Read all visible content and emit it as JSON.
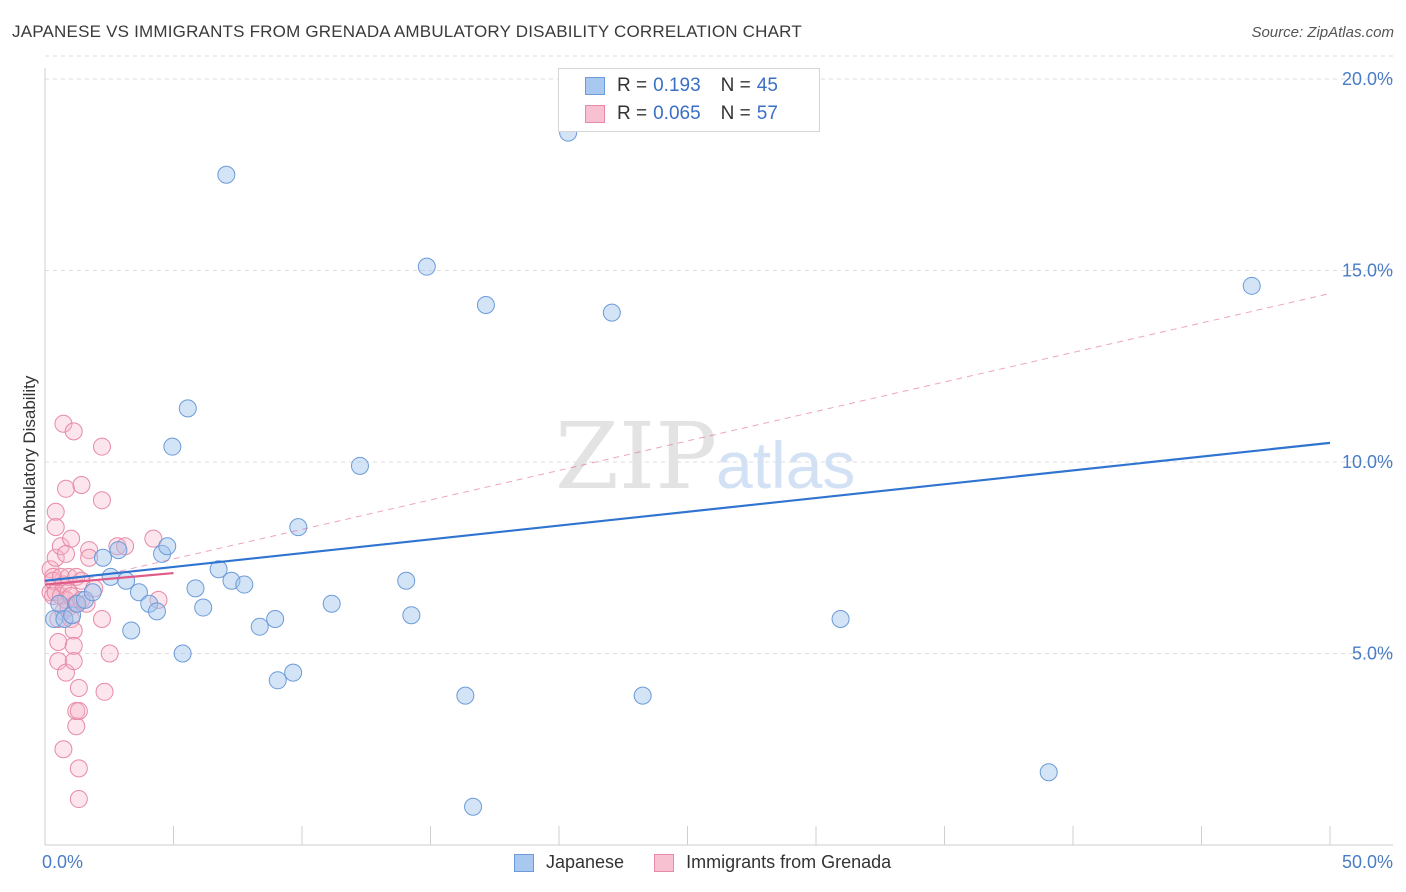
{
  "title": "JAPANESE VS IMMIGRANTS FROM GRENADA AMBULATORY DISABILITY CORRELATION CHART",
  "source": "Source: ZipAtlas.com",
  "watermark": {
    "zip": "ZIP",
    "atlas": "atlas"
  },
  "legend": {
    "rows": [
      {
        "r_label": "R =",
        "r_value": "0.193",
        "n_label": "N =",
        "n_value": "45",
        "color": "#a9c8f0",
        "border": "#6c9bd8"
      },
      {
        "r_label": "R =",
        "r_value": "0.065",
        "n_label": "N =",
        "n_value": "57",
        "color": "#f7c1d1",
        "border": "#e78aa8"
      }
    ]
  },
  "bottom_legend": {
    "series1": "Japanese",
    "series2": "Immigrants from Grenada"
  },
  "colors": {
    "blue_fill": "rgba(160,195,238,0.45)",
    "blue_stroke": "#6c9bd8",
    "blue_line": "#2f74d0",
    "pink_fill": "rgba(246,180,200,0.35)",
    "pink_stroke": "#e78aa8",
    "pink_line": "#e05b8a",
    "tick": "#4a7cc7",
    "grid": "#dcdcdc"
  },
  "chart_data": {
    "type": "scatter",
    "title": "JAPANESE VS IMMIGRANTS FROM GRENADA AMBULATORY DISABILITY CORRELATION CHART",
    "xlabel": "",
    "ylabel": "Ambulatory Disability",
    "xlim": [
      0,
      50
    ],
    "ylim": [
      0,
      20.6
    ],
    "x_ticks": [
      0,
      50
    ],
    "x_tick_labels": [
      "0.0%",
      "50.0%"
    ],
    "y_ticks": [
      5,
      10,
      15,
      20
    ],
    "y_tick_labels": [
      "5.0%",
      "10.0%",
      "15.0%",
      "20.0%"
    ],
    "grid": true,
    "legend_position": "top-center",
    "series": [
      {
        "name": "Japanese",
        "points": [
          [
            0.2,
            5.9
          ],
          [
            0.4,
            6.3
          ],
          [
            0.6,
            5.9
          ],
          [
            0.9,
            6.0
          ],
          [
            1.1,
            6.3
          ],
          [
            1.4,
            6.4
          ],
          [
            1.7,
            6.6
          ],
          [
            2.1,
            7.5
          ],
          [
            2.4,
            7.0
          ],
          [
            2.7,
            7.7
          ],
          [
            3.0,
            6.9
          ],
          [
            3.2,
            5.6
          ],
          [
            3.5,
            6.6
          ],
          [
            3.9,
            6.3
          ],
          [
            4.2,
            6.1
          ],
          [
            4.4,
            7.6
          ],
          [
            4.6,
            7.8
          ],
          [
            4.8,
            10.4
          ],
          [
            5.2,
            5.0
          ],
          [
            5.4,
            11.4
          ],
          [
            5.7,
            6.7
          ],
          [
            6.0,
            6.2
          ],
          [
            6.6,
            7.2
          ],
          [
            6.9,
            17.5
          ],
          [
            7.1,
            6.9
          ],
          [
            7.6,
            6.8
          ],
          [
            8.2,
            5.7
          ],
          [
            8.8,
            5.9
          ],
          [
            8.9,
            4.3
          ],
          [
            9.5,
            4.5
          ],
          [
            9.7,
            8.3
          ],
          [
            11.0,
            6.3
          ],
          [
            12.1,
            9.9
          ],
          [
            14.7,
            15.1
          ],
          [
            13.9,
            6.9
          ],
          [
            14.1,
            6.0
          ],
          [
            16.2,
            3.9
          ],
          [
            16.5,
            1.0
          ],
          [
            17.0,
            14.1
          ],
          [
            20.2,
            18.6
          ],
          [
            21.9,
            13.9
          ],
          [
            23.1,
            3.9
          ],
          [
            30.8,
            5.9
          ],
          [
            38.9,
            1.9
          ],
          [
            46.8,
            14.6
          ]
        ],
        "trend": {
          "x": [
            0,
            50
          ],
          "y": [
            6.9,
            10.5
          ]
        }
      },
      {
        "name": "Immigrants from Grenada",
        "points": [
          [
            0.1,
            7.2
          ],
          [
            0.1,
            6.6
          ],
          [
            0.2,
            7.0
          ],
          [
            0.2,
            6.5
          ],
          [
            0.2,
            6.9
          ],
          [
            0.3,
            8.7
          ],
          [
            0.3,
            8.3
          ],
          [
            0.3,
            7.5
          ],
          [
            0.3,
            6.6
          ],
          [
            0.4,
            5.9
          ],
          [
            0.4,
            5.3
          ],
          [
            0.4,
            4.8
          ],
          [
            0.5,
            7.8
          ],
          [
            0.5,
            7.0
          ],
          [
            0.5,
            6.5
          ],
          [
            0.6,
            11.0
          ],
          [
            0.6,
            6.8
          ],
          [
            0.6,
            6.1
          ],
          [
            0.6,
            2.5
          ],
          [
            0.7,
            9.3
          ],
          [
            0.7,
            7.6
          ],
          [
            0.7,
            6.4
          ],
          [
            0.7,
            4.5
          ],
          [
            0.8,
            7.0
          ],
          [
            0.8,
            6.6
          ],
          [
            0.8,
            6.2
          ],
          [
            0.9,
            8.0
          ],
          [
            0.9,
            6.5
          ],
          [
            0.9,
            5.9
          ],
          [
            1.0,
            5.6
          ],
          [
            1.0,
            5.2
          ],
          [
            1.0,
            4.8
          ],
          [
            1.0,
            10.8
          ],
          [
            1.1,
            7.0
          ],
          [
            1.1,
            6.3
          ],
          [
            1.1,
            3.1
          ],
          [
            1.1,
            3.5
          ],
          [
            1.2,
            3.5
          ],
          [
            1.2,
            4.1
          ],
          [
            1.2,
            2.0
          ],
          [
            1.2,
            1.2
          ],
          [
            1.3,
            9.4
          ],
          [
            1.3,
            6.9
          ],
          [
            1.3,
            6.4
          ],
          [
            1.5,
            6.3
          ],
          [
            1.6,
            7.7
          ],
          [
            1.6,
            7.5
          ],
          [
            1.8,
            6.7
          ],
          [
            2.1,
            10.4
          ],
          [
            2.1,
            9.0
          ],
          [
            2.1,
            5.9
          ],
          [
            2.2,
            4.0
          ],
          [
            2.4,
            5.0
          ],
          [
            2.7,
            7.8
          ],
          [
            3.0,
            7.8
          ],
          [
            4.1,
            8.0
          ],
          [
            4.3,
            6.4
          ]
        ],
        "trend": {
          "x": [
            0,
            5
          ],
          "y": [
            6.8,
            7.1
          ]
        },
        "trend_extended": {
          "x": [
            0,
            50
          ],
          "y": [
            6.7,
            14.4
          ]
        }
      }
    ]
  }
}
